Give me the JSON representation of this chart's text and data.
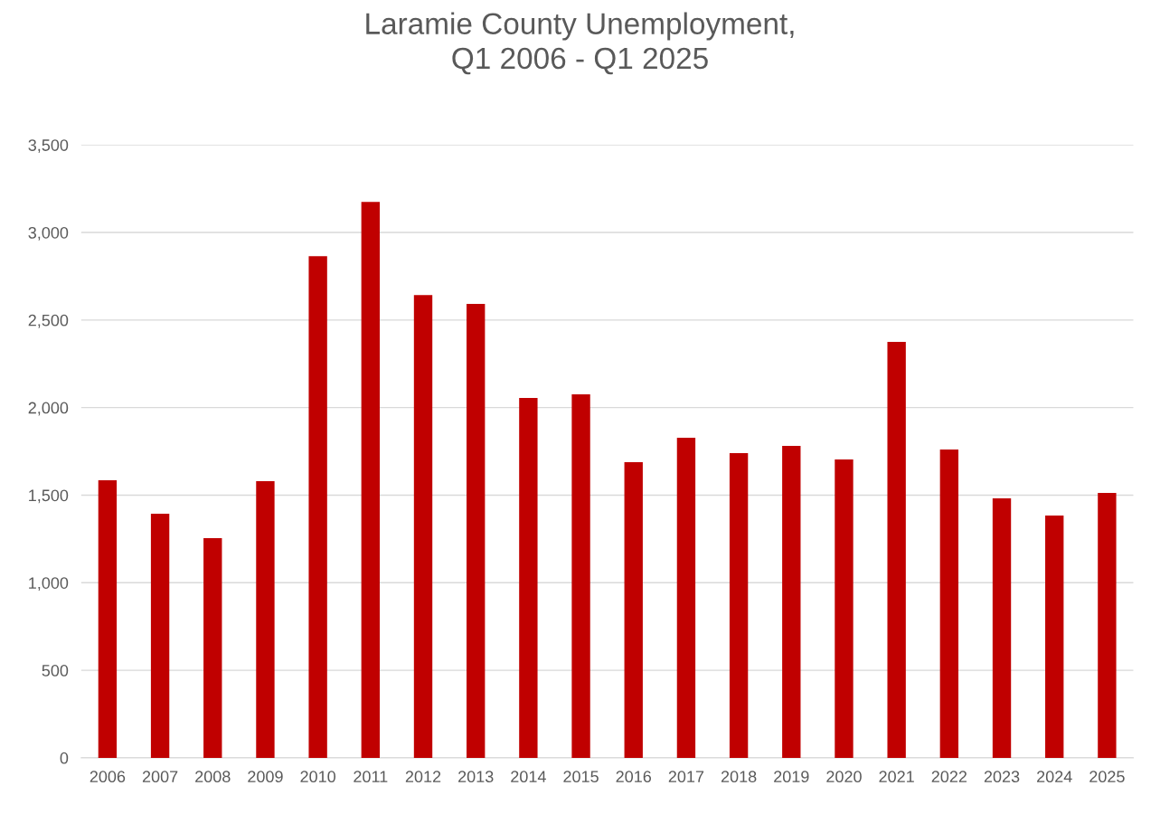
{
  "chart_data": {
    "type": "bar",
    "title": "Laramie County Unemployment,\nQ1 2006 - Q1 2025",
    "categories": [
      "2006",
      "2007",
      "2008",
      "2009",
      "2010",
      "2011",
      "2012",
      "2013",
      "2014",
      "2015",
      "2016",
      "2017",
      "2018",
      "2019",
      "2020",
      "2021",
      "2022",
      "2023",
      "2024",
      "2025"
    ],
    "values": [
      1585,
      1394,
      1254,
      1580,
      2865,
      3175,
      2643,
      2592,
      2055,
      2075,
      1688,
      1828,
      1740,
      1781,
      1704,
      2375,
      1760,
      1482,
      1384,
      1513
    ],
    "color": "#c00000",
    "ylim": [
      0,
      3500
    ],
    "yticks": [
      {
        "value": 0,
        "label": "0"
      },
      {
        "value": 500,
        "label": "500"
      },
      {
        "value": 1000,
        "label": "1,000"
      },
      {
        "value": 1500,
        "label": "1,500"
      },
      {
        "value": 2000,
        "label": "2,000"
      },
      {
        "value": 2500,
        "label": "2,500"
      },
      {
        "value": 3000,
        "label": "3,000"
      },
      {
        "value": 3500,
        "label": "3,500"
      }
    ],
    "grid": "y",
    "legend": false
  }
}
